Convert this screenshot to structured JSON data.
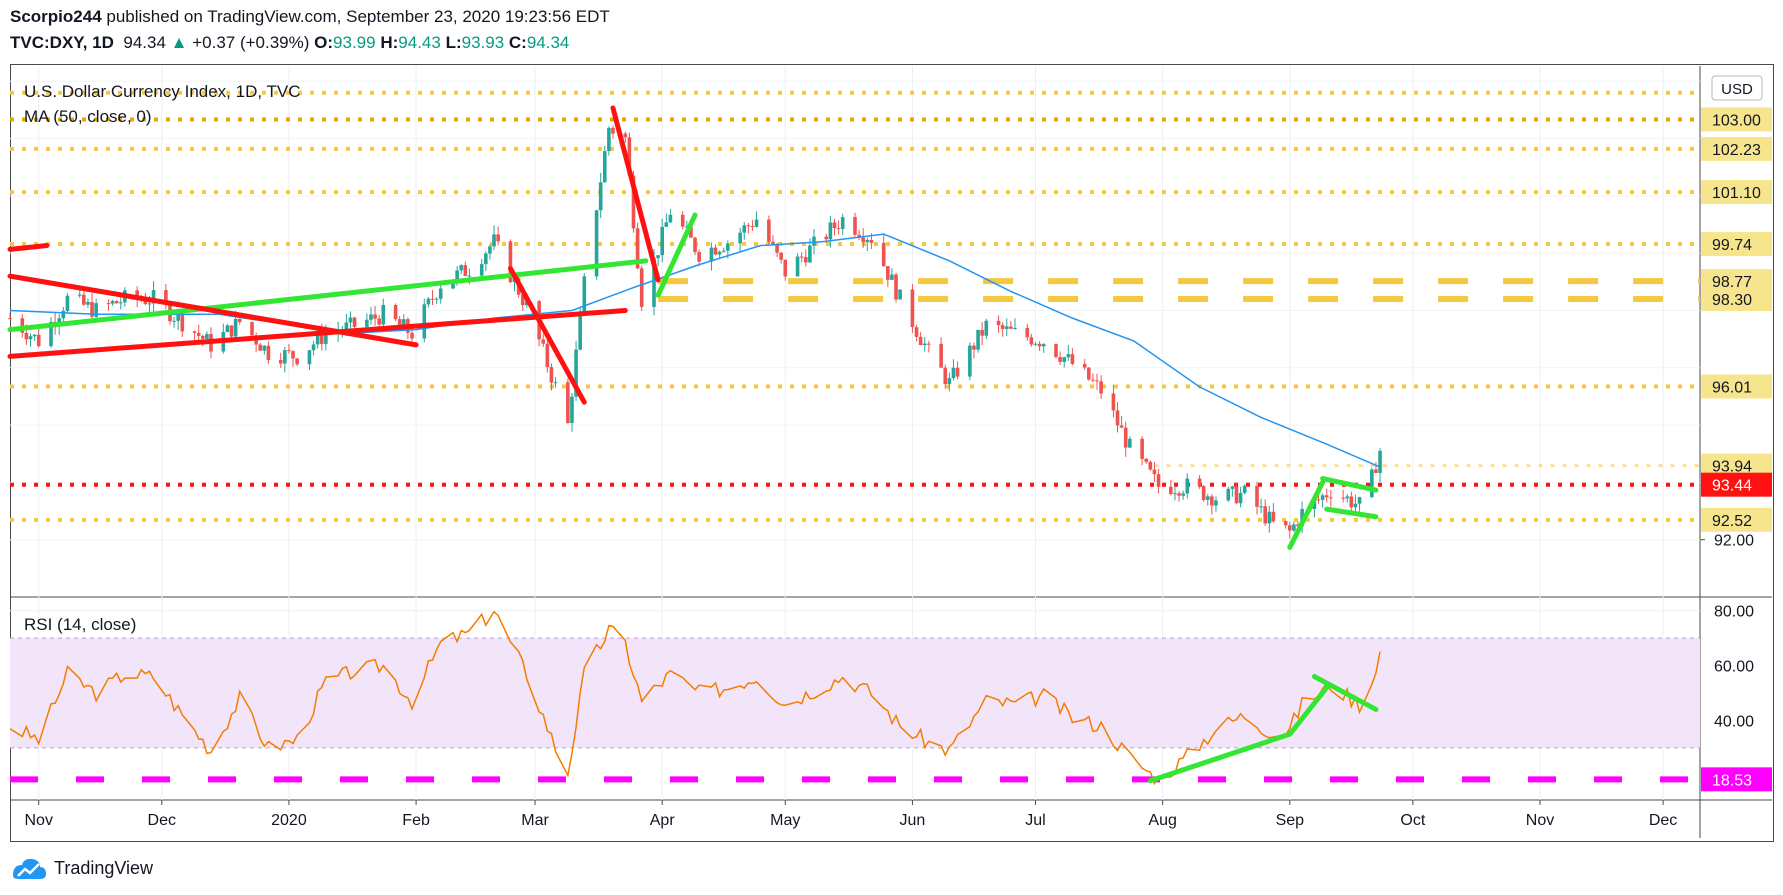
{
  "header": {
    "author": "Scorpio244",
    "published_text": "published on TradingView.com, September 23, 2020 19:23:56 EDT",
    "symbol": "TVC:DXY, 1D",
    "last": "94.34",
    "change": "+0.37 (+0.39%)",
    "o_label": "O:",
    "o": "93.99",
    "h_label": "H:",
    "h": "94.43",
    "l_label": "L:",
    "l": "93.93",
    "c_label": "C:",
    "c": "94.34"
  },
  "footer": {
    "brand": "TradingView",
    "logo_icon": "tradingview-logo-icon"
  },
  "colors": {
    "ma": "#2196f3",
    "rsi": "#f57c00",
    "green": "#33e633",
    "red": "#ff1111",
    "gold": "#f5c842",
    "magenta": "#ff00ff",
    "up": "#26a69a",
    "down": "#ef5350",
    "rsi_band": "#f3e5f9"
  },
  "chart_data": [
    {
      "type": "candlestick",
      "title": "U.S. Dollar Currency Index, 1D, TVC",
      "indicator": "MA (50, close, 0)",
      "currency": "USD",
      "ylim": [
        90.5,
        104.4
      ],
      "xlim": [
        "2019-10-25",
        "2020-12-10"
      ],
      "x_ticks": [
        {
          "label": "Nov",
          "date": "2019-11-01"
        },
        {
          "label": "Dec",
          "date": "2019-12-01"
        },
        {
          "label": "2020",
          "date": "2020-01-01"
        },
        {
          "label": "Feb",
          "date": "2020-02-01"
        },
        {
          "label": "Mar",
          "date": "2020-03-01"
        },
        {
          "label": "Apr",
          "date": "2020-04-01"
        },
        {
          "label": "May",
          "date": "2020-05-01"
        },
        {
          "label": "Jun",
          "date": "2020-06-01"
        },
        {
          "label": "Jul",
          "date": "2020-07-01"
        },
        {
          "label": "Aug",
          "date": "2020-08-01"
        },
        {
          "label": "Sep",
          "date": "2020-09-01"
        },
        {
          "label": "Oct",
          "date": "2020-10-01"
        },
        {
          "label": "Nov",
          "date": "2020-11-01"
        },
        {
          "label": "Dec",
          "date": "2020-12-01"
        }
      ],
      "y_ticks": [
        "92.00"
      ],
      "levels": [
        {
          "value": 103.0,
          "label": "103.00",
          "style": "dotted-dark"
        },
        {
          "value": 102.23,
          "label": "102.23",
          "style": "dotted"
        },
        {
          "value": 101.1,
          "label": "101.10",
          "style": "dotted"
        },
        {
          "value": 99.74,
          "label": "99.74",
          "style": "dotted"
        },
        {
          "value": 98.77,
          "label": "98.77",
          "style": "dashed",
          "from": "2020-03-31"
        },
        {
          "value": 98.3,
          "label": "98.30",
          "style": "dashed",
          "from": "2020-03-31"
        },
        {
          "value": 96.01,
          "label": "96.01",
          "style": "dotted"
        },
        {
          "value": 93.94,
          "label": "93.94",
          "style": "dotted-light",
          "from": "2020-07-30"
        },
        {
          "value": 93.44,
          "label": "93.44",
          "style": "dotted-red"
        },
        {
          "value": 92.52,
          "label": "92.52",
          "style": "dotted"
        }
      ],
      "top_level": 103.7,
      "closes": [
        [
          "2019-10-25",
          97.8
        ],
        [
          "2019-11-01",
          97.2
        ],
        [
          "2019-11-08",
          98.3
        ],
        [
          "2019-11-15",
          98.0
        ],
        [
          "2019-11-22",
          98.3
        ],
        [
          "2019-11-29",
          98.3
        ],
        [
          "2019-12-06",
          97.7
        ],
        [
          "2019-12-13",
          97.1
        ],
        [
          "2019-12-20",
          97.7
        ],
        [
          "2019-12-27",
          96.9
        ],
        [
          "2020-01-03",
          96.8
        ],
        [
          "2020-01-10",
          97.4
        ],
        [
          "2020-01-17",
          97.6
        ],
        [
          "2020-01-24",
          97.9
        ],
        [
          "2020-01-31",
          97.4
        ],
        [
          "2020-02-07",
          98.7
        ],
        [
          "2020-02-14",
          99.1
        ],
        [
          "2020-02-20",
          99.8
        ],
        [
          "2020-02-28",
          98.1
        ],
        [
          "2020-03-06",
          96.0
        ],
        [
          "2020-03-09",
          95.0
        ],
        [
          "2020-03-13",
          98.7
        ],
        [
          "2020-03-19",
          102.8
        ],
        [
          "2020-03-23",
          102.5
        ],
        [
          "2020-03-27",
          98.3
        ],
        [
          "2020-04-03",
          100.6
        ],
        [
          "2020-04-10",
          99.5
        ],
        [
          "2020-04-17",
          99.8
        ],
        [
          "2020-04-24",
          100.4
        ],
        [
          "2020-05-01",
          99.0
        ],
        [
          "2020-05-08",
          99.7
        ],
        [
          "2020-05-15",
          100.4
        ],
        [
          "2020-05-22",
          99.9
        ],
        [
          "2020-05-29",
          98.3
        ],
        [
          "2020-06-05",
          96.9
        ],
        [
          "2020-06-10",
          96.1
        ],
        [
          "2020-06-19",
          97.6
        ],
        [
          "2020-06-26",
          97.4
        ],
        [
          "2020-07-03",
          97.2
        ],
        [
          "2020-07-10",
          96.6
        ],
        [
          "2020-07-17",
          95.9
        ],
        [
          "2020-07-24",
          94.4
        ],
        [
          "2020-07-31",
          93.4
        ],
        [
          "2020-08-07",
          93.4
        ],
        [
          "2020-08-14",
          93.1
        ],
        [
          "2020-08-21",
          93.2
        ],
        [
          "2020-08-28",
          92.4
        ],
        [
          "2020-09-01",
          92.2
        ],
        [
          "2020-09-04",
          92.7
        ],
        [
          "2020-09-11",
          93.3
        ],
        [
          "2020-09-18",
          92.9
        ],
        [
          "2020-09-21",
          93.6
        ],
        [
          "2020-09-22",
          93.99
        ],
        [
          "2020-09-23",
          94.34
        ]
      ],
      "ma50": [
        [
          "2019-10-25",
          98.0
        ],
        [
          "2019-11-15",
          97.9
        ],
        [
          "2019-12-15",
          97.9
        ],
        [
          "2020-01-15",
          97.4
        ],
        [
          "2020-02-01",
          97.5
        ],
        [
          "2020-02-20",
          97.8
        ],
        [
          "2020-03-10",
          98.0
        ],
        [
          "2020-03-25",
          98.6
        ],
        [
          "2020-04-10",
          99.2
        ],
        [
          "2020-04-25",
          99.7
        ],
        [
          "2020-05-10",
          99.8
        ],
        [
          "2020-05-25",
          100.0
        ],
        [
          "2020-06-10",
          99.3
        ],
        [
          "2020-06-25",
          98.5
        ],
        [
          "2020-07-10",
          97.8
        ],
        [
          "2020-07-25",
          97.2
        ],
        [
          "2020-08-10",
          96.0
        ],
        [
          "2020-08-25",
          95.2
        ],
        [
          "2020-09-10",
          94.5
        ],
        [
          "2020-09-23",
          93.9
        ]
      ],
      "trendlines": [
        {
          "color": "green",
          "points": [
            [
              "2019-10-25",
              97.5
            ],
            [
              "2020-03-28",
              99.3
            ]
          ]
        },
        {
          "color": "red",
          "points": [
            [
              "2019-10-25",
              96.8
            ],
            [
              "2020-03-23",
              98.0
            ]
          ]
        },
        {
          "color": "red",
          "points": [
            [
              "2019-10-25",
              98.9
            ],
            [
              "2020-02-01",
              97.1
            ]
          ]
        },
        {
          "color": "red",
          "points": [
            [
              "2019-10-25",
              99.6
            ],
            [
              "2019-11-03",
              99.7
            ]
          ]
        },
        {
          "color": "red",
          "points": [
            [
              "2020-02-24",
              99.1
            ],
            [
              "2020-03-13",
              95.6
            ]
          ]
        },
        {
          "color": "red",
          "points": [
            [
              "2020-03-20",
              103.3
            ],
            [
              "2020-03-31",
              98.8
            ]
          ]
        },
        {
          "color": "green",
          "points": [
            [
              "2020-03-31",
              98.4
            ],
            [
              "2020-04-09",
              100.5
            ]
          ]
        },
        {
          "color": "green",
          "points": [
            [
              "2020-09-01",
              91.8
            ],
            [
              "2020-09-09",
              93.5
            ]
          ]
        },
        {
          "color": "green",
          "points": [
            [
              "2020-09-09",
              93.6
            ],
            [
              "2020-09-22",
              93.3
            ]
          ]
        },
        {
          "color": "green",
          "points": [
            [
              "2020-09-10",
              92.8
            ],
            [
              "2020-09-22",
              92.6
            ]
          ]
        }
      ]
    },
    {
      "type": "line",
      "title": "RSI (14, close)",
      "ylim": [
        11,
        85
      ],
      "y_ticks": [
        80,
        60,
        40
      ],
      "band": [
        30,
        70
      ],
      "level": {
        "value": 18.53,
        "label": "18.53"
      },
      "series": [
        {
          "values": [
            [
              "2019-10-25",
              38
            ],
            [
              "2019-11-01",
              33
            ],
            [
              "2019-11-08",
              57
            ],
            [
              "2019-11-15",
              50
            ],
            [
              "2019-11-22",
              57
            ],
            [
              "2019-11-29",
              56
            ],
            [
              "2019-12-06",
              42
            ],
            [
              "2019-12-13",
              29
            ],
            [
              "2019-12-20",
              48
            ],
            [
              "2019-12-27",
              30
            ],
            [
              "2020-01-03",
              33
            ],
            [
              "2020-01-10",
              54
            ],
            [
              "2020-01-17",
              58
            ],
            [
              "2020-01-24",
              60
            ],
            [
              "2020-01-31",
              47
            ],
            [
              "2020-02-07",
              68
            ],
            [
              "2020-02-14",
              72
            ],
            [
              "2020-02-20",
              80
            ],
            [
              "2020-02-28",
              57
            ],
            [
              "2020-03-06",
              30
            ],
            [
              "2020-03-09",
              21
            ],
            [
              "2020-03-13",
              57
            ],
            [
              "2020-03-19",
              73
            ],
            [
              "2020-03-23",
              68
            ],
            [
              "2020-03-27",
              47
            ],
            [
              "2020-04-03",
              57
            ],
            [
              "2020-04-10",
              50
            ],
            [
              "2020-04-17",
              52
            ],
            [
              "2020-04-24",
              56
            ],
            [
              "2020-05-01",
              46
            ],
            [
              "2020-05-08",
              51
            ],
            [
              "2020-05-15",
              56
            ],
            [
              "2020-05-22",
              50
            ],
            [
              "2020-05-29",
              38
            ],
            [
              "2020-06-05",
              32
            ],
            [
              "2020-06-10",
              29
            ],
            [
              "2020-06-19",
              47
            ],
            [
              "2020-06-26",
              46
            ],
            [
              "2020-07-03",
              49
            ],
            [
              "2020-07-10",
              41
            ],
            [
              "2020-07-17",
              38
            ],
            [
              "2020-07-24",
              27
            ],
            [
              "2020-07-31",
              18
            ],
            [
              "2020-08-07",
              27
            ],
            [
              "2020-08-14",
              37
            ],
            [
              "2020-08-21",
              42
            ],
            [
              "2020-08-28",
              35
            ],
            [
              "2020-09-01",
              37
            ],
            [
              "2020-09-04",
              46
            ],
            [
              "2020-09-11",
              53
            ],
            [
              "2020-09-18",
              46
            ],
            [
              "2020-09-21",
              54
            ],
            [
              "2020-09-22",
              60
            ],
            [
              "2020-09-23",
              65
            ]
          ]
        }
      ],
      "trendlines": [
        {
          "color": "green",
          "points": [
            [
              "2020-07-29",
              18
            ],
            [
              "2020-09-01",
              35
            ]
          ]
        },
        {
          "color": "green",
          "points": [
            [
              "2020-09-01",
              35
            ],
            [
              "2020-09-10",
              52
            ]
          ]
        },
        {
          "color": "green",
          "points": [
            [
              "2020-09-07",
              56
            ],
            [
              "2020-09-22",
              44
            ]
          ]
        }
      ]
    }
  ]
}
